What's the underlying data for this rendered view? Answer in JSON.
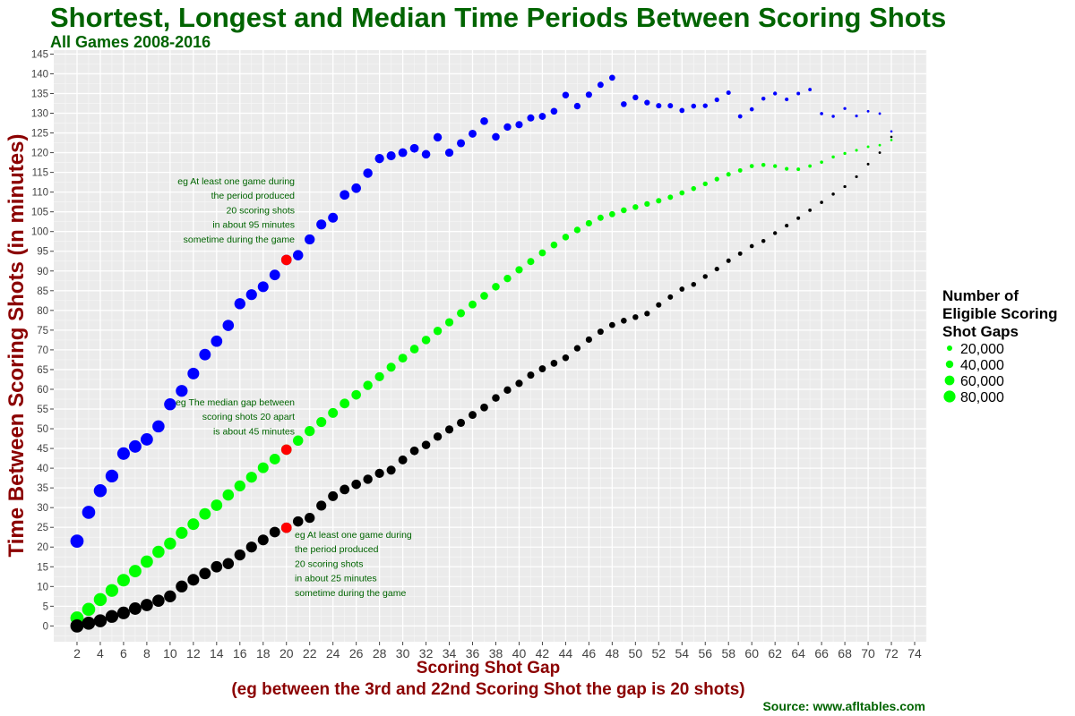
{
  "chart_data": {
    "type": "scatter",
    "title": "Shortest, Longest and Median Time Periods Between Scoring Shots",
    "subtitle": "All Games 2008-2016",
    "xlabel": "Scoring Shot Gap",
    "xlabel2": "(eg between the 3rd and 22nd Scoring Shot the gap is 20 shots)",
    "ylabel": "Time Between Scoring Shots (in minutes)",
    "source": "Source: www.afltables.com",
    "xlim": [
      0,
      75
    ],
    "ylim": [
      -4,
      146
    ],
    "x_ticks": [
      "2",
      "4",
      "6",
      "8",
      "10",
      "12",
      "14",
      "16",
      "18",
      "20",
      "22",
      "24",
      "26",
      "28",
      "30",
      "32",
      "34",
      "36",
      "38",
      "40",
      "42",
      "44",
      "46",
      "48",
      "50",
      "52",
      "54",
      "56",
      "58",
      "60",
      "62",
      "64",
      "66",
      "68",
      "70",
      "72",
      "74"
    ],
    "y_ticks": [
      "0",
      "5",
      "10",
      "15",
      "20",
      "25",
      "30",
      "35",
      "40",
      "45",
      "50",
      "55",
      "60",
      "65",
      "70",
      "75",
      "80",
      "85",
      "90",
      "95",
      "100",
      "105",
      "110",
      "115",
      "120",
      "125",
      "130",
      "135",
      "140",
      "145"
    ],
    "grid": true,
    "background": "#ebebeb",
    "x": [
      2,
      3,
      4,
      5,
      6,
      7,
      8,
      9,
      10,
      11,
      12,
      13,
      14,
      15,
      16,
      17,
      18,
      19,
      20,
      21,
      22,
      23,
      24,
      25,
      26,
      27,
      28,
      29,
      30,
      31,
      32,
      33,
      34,
      35,
      36,
      37,
      38,
      39,
      40,
      41,
      42,
      43,
      44,
      45,
      46,
      47,
      48,
      49,
      50,
      51,
      52,
      53,
      54,
      55,
      56,
      57,
      58,
      59,
      60,
      61,
      62,
      63,
      64,
      65,
      66,
      67,
      68,
      69,
      70,
      71,
      72
    ],
    "series": [
      {
        "color": "#0000ff",
        "values": [
          21.5,
          28.8,
          34.3,
          38,
          43.7,
          45.5,
          47.3,
          50.6,
          56.2,
          59.6,
          64,
          68.8,
          72.2,
          76.2,
          81.7,
          84,
          86,
          89,
          92.8,
          94,
          98,
          101.8,
          103.5,
          109.3,
          111,
          114.8,
          118.5,
          119.2,
          120,
          121.1,
          119.6,
          123.9,
          120,
          122.4,
          124.8,
          128,
          124,
          126.5,
          127.1,
          128.8,
          129.2,
          130.5,
          134.6,
          131.8,
          134.7,
          137.2,
          139,
          132.3,
          134,
          132.7,
          131.9,
          131.9,
          130.7,
          131.8,
          131.9,
          133.4,
          135.2,
          129.2,
          131,
          133.7,
          135,
          133.5,
          135,
          136,
          129.9,
          129.2,
          131.2,
          129.3,
          130.5,
          129.9,
          125.4
        ]
      },
      {
        "color": "#00ff00",
        "values": [
          2,
          4.2,
          6.7,
          9,
          11.6,
          13.9,
          16.3,
          18.8,
          20.9,
          23.6,
          25.8,
          28.4,
          30.6,
          33.2,
          35.5,
          37.7,
          40.1,
          42.3,
          44.7,
          47,
          49.4,
          51.7,
          54,
          56.4,
          58.6,
          61,
          63.2,
          65.6,
          67.9,
          70.2,
          72.5,
          74.8,
          77,
          79.3,
          81.5,
          83.7,
          86,
          88.1,
          90.3,
          92.4,
          94.6,
          96.6,
          98.6,
          100.4,
          102.1,
          103.5,
          104.4,
          105.4,
          106.2,
          107,
          107.8,
          108.7,
          109.8,
          110.9,
          112.1,
          113.3,
          114.5,
          115.5,
          116.6,
          116.9,
          116.6,
          115.9,
          115.8,
          116.6,
          117.6,
          118.9,
          119.8,
          120.6,
          121.5,
          121.9,
          123.2
        ]
      },
      {
        "color": "#000000",
        "values": [
          0,
          0.7,
          1.3,
          2.4,
          3.3,
          4.4,
          5.3,
          6.4,
          7.5,
          10,
          11.7,
          13.3,
          15,
          15.8,
          18,
          20,
          21.8,
          23.8,
          24.9,
          26.5,
          27.4,
          30.5,
          32.9,
          34.6,
          35.9,
          37.2,
          38.7,
          39.5,
          42.1,
          44.4,
          45.9,
          48,
          49.8,
          51.5,
          53.5,
          55.4,
          57.8,
          59.8,
          61.5,
          63.6,
          65.2,
          66.6,
          68,
          70.4,
          72.6,
          74.6,
          76.3,
          77.4,
          78.3,
          79.2,
          81.4,
          83.4,
          85.4,
          86.6,
          88.6,
          90.5,
          92.6,
          94.4,
          96.3,
          97.6,
          99.6,
          101.5,
          103.4,
          105.4,
          107.4,
          109.5,
          111.4,
          113.9,
          117.1,
          120,
          124
        ]
      }
    ],
    "highlights": [
      {
        "x": 20,
        "y": 92.8,
        "color": "#ff0000"
      },
      {
        "x": 20,
        "y": 44.7,
        "color": "#ff0000"
      },
      {
        "x": 20,
        "y": 24.9,
        "color": "#ff0000"
      }
    ],
    "annotations": [
      {
        "lines": [
          "eg At least one game during",
          "the period produced",
          "20 scoring shots",
          "in about 95 minutes",
          "sometime during the game"
        ]
      },
      {
        "lines": [
          "eg The median gap between",
          "scoring shots 20 apart",
          "is about 45 minutes"
        ]
      },
      {
        "lines": [
          "eg At least one game during",
          "the period produced",
          "20 scoring shots",
          "in about 25 minutes",
          "sometime during the game"
        ]
      }
    ],
    "legend": {
      "title_lines": [
        "Number of",
        "Eligible Scoring",
        "Shot Gaps"
      ],
      "items": [
        "20,000",
        "40,000",
        "60,000",
        "80,000"
      ],
      "color": "#00ff00",
      "placement": "right"
    }
  }
}
